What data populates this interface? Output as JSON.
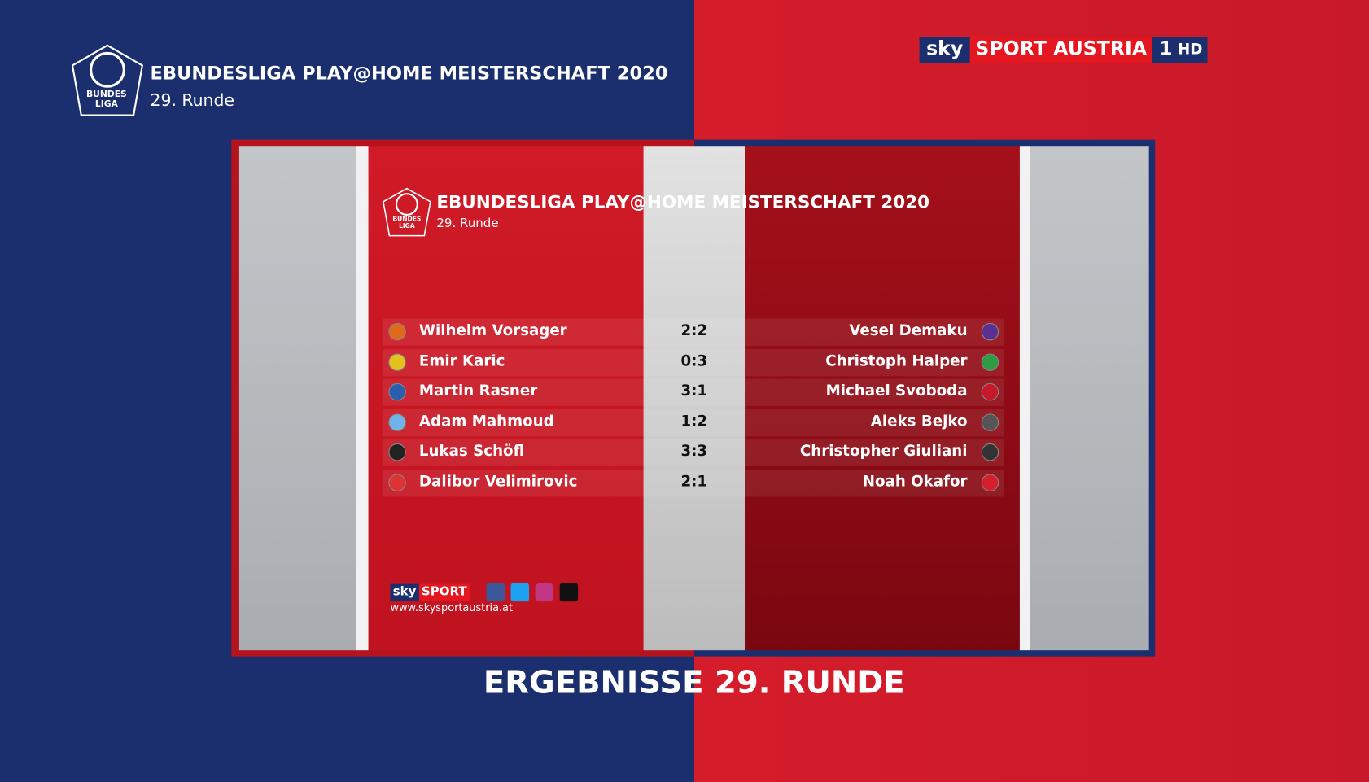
{
  "header": {
    "logo_text": "BUNDES LIGA",
    "title": "EBUNDESLIGA PLAY@HOME MEISTERSCHAFT 2020",
    "subtitle": "29. Runde"
  },
  "channel": {
    "sky": "sky",
    "name": "SPORT AUSTRIA",
    "number": "1",
    "hd": "HD"
  },
  "panel": {
    "logo_text": "BUNDES LIGA",
    "title": "EBUNDESLIGA PLAY@HOME MEISTERSCHAFT 2020",
    "subtitle": "29. Runde",
    "matches": [
      {
        "home": "Wilhelm Vorsager",
        "score": "2:2",
        "away": "Vesel Demaku"
      },
      {
        "home": "Emir Karic",
        "score": "0:3",
        "away": "Christoph Halper"
      },
      {
        "home": "Martin Rasner",
        "score": "3:1",
        "away": "Michael Svoboda"
      },
      {
        "home": "Adam Mahmoud",
        "score": "1:2",
        "away": "Aleks Bejko"
      },
      {
        "home": "Lukas Schöfl",
        "score": "3:3",
        "away": "Christopher Giuliani"
      },
      {
        "home": "Dalibor Velimirovic",
        "score": "2:1",
        "away": "Noah Okafor"
      }
    ],
    "footer": {
      "sky": "sky",
      "sport": "SPORT",
      "url": "www.skysportaustria.at"
    }
  },
  "caption": "ERGEBNISSE 29. RUNDE"
}
